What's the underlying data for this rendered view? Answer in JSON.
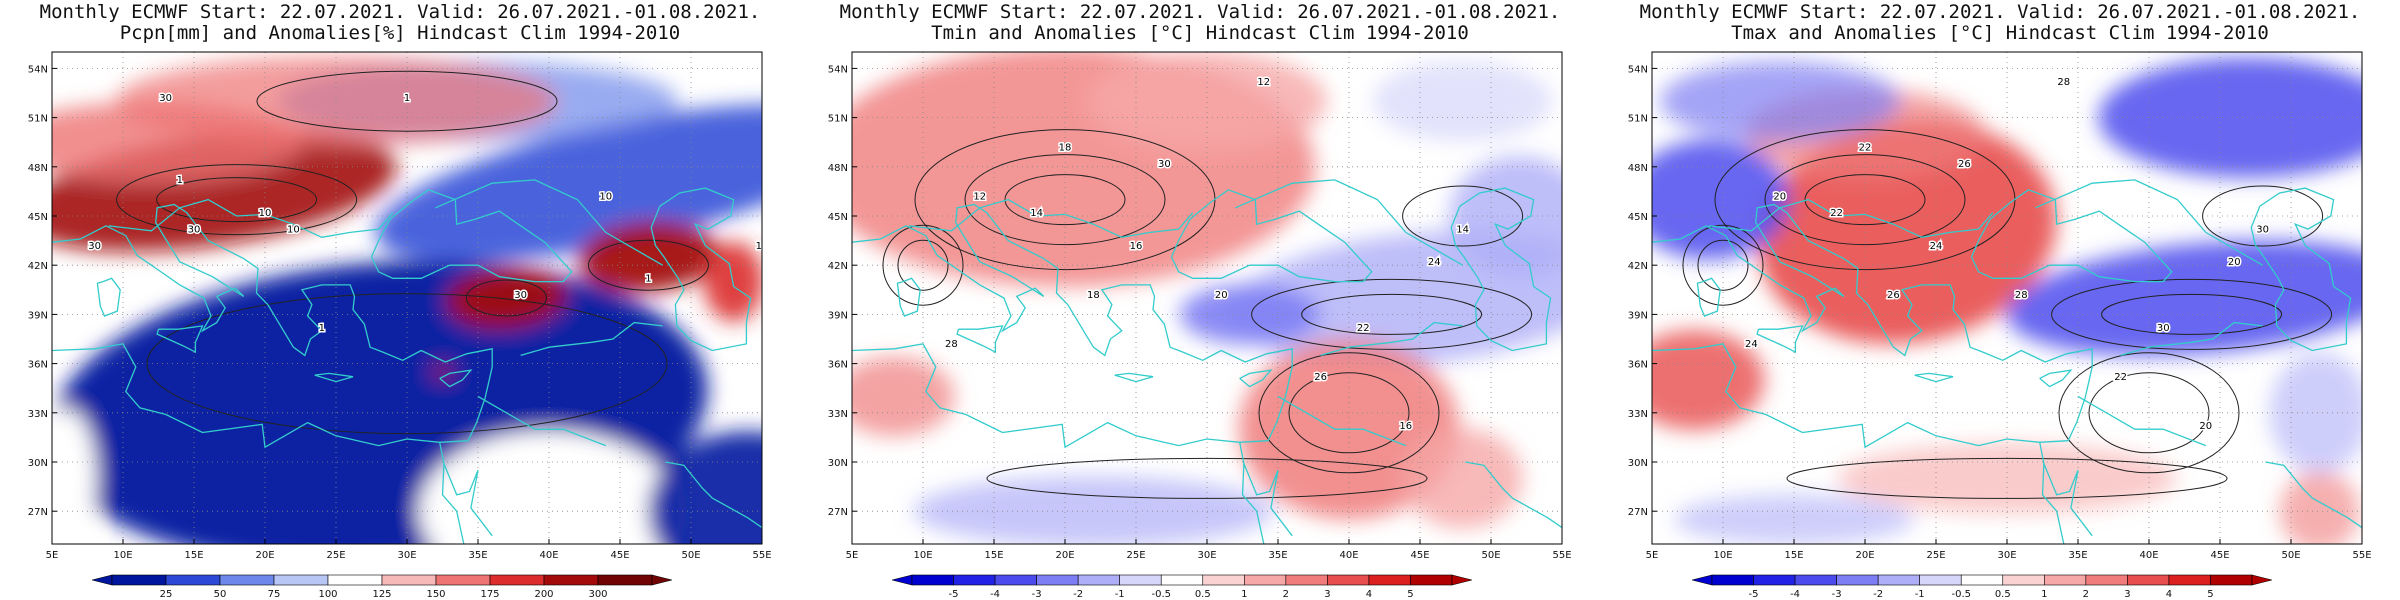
{
  "panels": [
    {
      "title_line1": "Monthly ECMWF Start: 22.07.2021. Valid: 26.07.2021.-01.08.2021.",
      "title_line2": "Pcpn[mm] and Anomalies[%] Hindcast Clim 1994-2010",
      "colorbar_labels": [
        "25",
        "50",
        "75",
        "100",
        "125",
        "150",
        "175",
        "200",
        "300"
      ]
    },
    {
      "title_line1": "Monthly ECMWF Start: 22.07.2021. Valid: 26.07.2021.-01.08.2021.",
      "title_line2": "Tmin and Anomalies [°C] Hindcast Clim 1994-2010",
      "colorbar_labels": [
        "-5",
        "-4",
        "-3",
        "-2",
        "-1",
        "-0.5",
        "0.5",
        "1",
        "2",
        "3",
        "4",
        "5"
      ]
    },
    {
      "title_line1": "Monthly ECMWF Start: 22.07.2021. Valid: 26.07.2021.-01.08.2021.",
      "title_line2": "Tmax and Anomalies [°C] Hindcast Clim 1994-2010",
      "colorbar_labels": [
        "-5",
        "-4",
        "-3",
        "-2",
        "-1",
        "-0.5",
        "0.5",
        "1",
        "2",
        "3",
        "4",
        "5"
      ]
    }
  ],
  "axes": {
    "lat_labels": [
      "54N",
      "51N",
      "48N",
      "45N",
      "42N",
      "39N",
      "36N",
      "33N",
      "30N",
      "27N"
    ],
    "lon_labels": [
      "5E",
      "10E",
      "15E",
      "20E",
      "25E",
      "30E",
      "35E",
      "40E",
      "45E",
      "50E",
      "55E"
    ]
  },
  "colors": {
    "precip_scale": [
      "#00159e",
      "#2b49d6",
      "#6d88ea",
      "#b8c6f6",
      "#ffffff",
      "#f7b8b8",
      "#ee7373",
      "#dc2c2c",
      "#a30b0b",
      "#700404"
    ],
    "temp_scale": [
      "#0000d0",
      "#2222e6",
      "#4c4cee",
      "#7e7ef4",
      "#aeaef8",
      "#d6d6fb",
      "#ffffff",
      "#fbd2d2",
      "#f6a8a8",
      "#f07c7c",
      "#e84e4e",
      "#dc2020",
      "#b00000"
    ],
    "coast": "#33cccc",
    "contour": "#222222"
  },
  "chart_data": [
    {
      "type": "heatmap",
      "title": "Monthly ECMWF Start: 22.07.2021. Valid: 26.07.2021.-01.08.2021. Pcpn[mm] and Anomalies[%] Hindcast Clim 1994-2010",
      "xlim_deg_E": [
        5,
        55
      ],
      "ylim_deg_N": [
        25,
        55
      ],
      "colorbar_levels": [
        25,
        50,
        75,
        100,
        125,
        150,
        175,
        200,
        300
      ],
      "contour_labels": [
        "1",
        "10",
        "30"
      ],
      "regions": [
        {
          "lon": [
            6,
            28
          ],
          "lat": [
            42,
            48
          ],
          "anomaly_pct": 250
        },
        {
          "lon": [
            10,
            55
          ],
          "lat": [
            49,
            55
          ],
          "anomaly_pct": 160
        },
        {
          "lon": [
            32,
            42
          ],
          "lat": [
            38,
            42
          ],
          "anomaly_pct": 220
        },
        {
          "lon": [
            42,
            52
          ],
          "lat": [
            40,
            44
          ],
          "anomaly_pct": 200
        },
        {
          "lon": [
            8,
            50
          ],
          "lat": [
            30,
            41
          ],
          "anomaly_pct": 15
        },
        {
          "lon": [
            32,
            55
          ],
          "lat": [
            44,
            50
          ],
          "anomaly_pct": 40
        },
        {
          "lon": [
            26,
            45
          ],
          "lat": [
            25,
            36
          ],
          "anomaly_pct": 100
        }
      ]
    },
    {
      "type": "heatmap",
      "title": "Monthly ECMWF Start: 22.07.2021. Valid: 26.07.2021.-01.08.2021. Tmin and Anomalies [°C] Hindcast Clim 1994-2010",
      "xlim_deg_E": [
        5,
        55
      ],
      "ylim_deg_N": [
        25,
        55
      ],
      "colorbar_levels": [
        -5,
        -4,
        -3,
        -2,
        -1,
        -0.5,
        0.5,
        1,
        2,
        3,
        4,
        5
      ],
      "contour_labels": [
        "12",
        "14",
        "16",
        "18",
        "20",
        "22",
        "24",
        "26",
        "28",
        "30"
      ],
      "regions": [
        {
          "lon": [
            10,
            32
          ],
          "lat": [
            40,
            54
          ],
          "anomaly_c": 1.5
        },
        {
          "lon": [
            35,
            55
          ],
          "lat": [
            36,
            45
          ],
          "anomaly_c": -1.5
        },
        {
          "lon": [
            28,
            38
          ],
          "lat": [
            37,
            41
          ],
          "anomaly_c": -2.5
        },
        {
          "lon": [
            34,
            46
          ],
          "lat": [
            27,
            35
          ],
          "anomaly_c": 2
        },
        {
          "lon": [
            15,
            30
          ],
          "lat": [
            25,
            30
          ],
          "anomaly_c": -1
        }
      ]
    },
    {
      "type": "heatmap",
      "title": "Monthly ECMWF Start: 22.07.2021. Valid: 26.07.2021.-01.08.2021. Tmax and Anomalies [°C] Hindcast Clim 1994-2010",
      "xlim_deg_E": [
        5,
        55
      ],
      "ylim_deg_N": [
        25,
        55
      ],
      "colorbar_levels": [
        -5,
        -4,
        -3,
        -2,
        -1,
        -0.5,
        0.5,
        1,
        2,
        3,
        4,
        5
      ],
      "contour_labels": [
        "20",
        "22",
        "24",
        "26",
        "28",
        "30"
      ],
      "regions": [
        {
          "lon": [
            16,
            30
          ],
          "lat": [
            38,
            49
          ],
          "anomaly_c": 3
        },
        {
          "lon": [
            5,
            14
          ],
          "lat": [
            42,
            50
          ],
          "anomaly_c": -2.5
        },
        {
          "lon": [
            32,
            55
          ],
          "lat": [
            36,
            44
          ],
          "anomaly_c": -3
        },
        {
          "lon": [
            38,
            55
          ],
          "lat": [
            46,
            55
          ],
          "anomaly_c": -2
        },
        {
          "lon": [
            5,
            12
          ],
          "lat": [
            33,
            37
          ],
          "anomaly_c": 2.5
        }
      ]
    }
  ]
}
